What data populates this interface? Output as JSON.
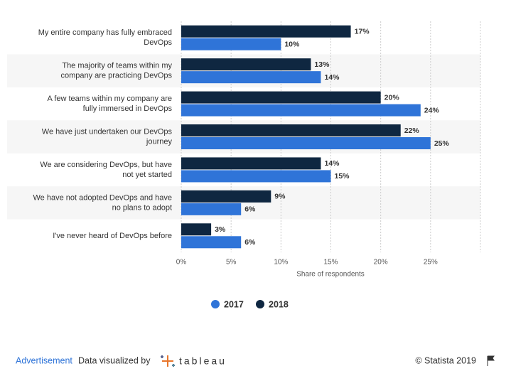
{
  "chart_data": {
    "type": "barh",
    "categories": [
      "My entire company has fully embraced DevOps",
      "The majority of teams within my company are practicing DevOps",
      "A few teams within my company are fully immersed in DevOps",
      "We have just undertaken our DevOps journey",
      "We are considering DevOps, but have not yet started",
      "We have not adopted DevOps and have no plans to adopt",
      "I've never heard of DevOps before"
    ],
    "series": [
      {
        "name": "2017",
        "color": "#2f74d8",
        "values": [
          10,
          14,
          24,
          25,
          15,
          6,
          6
        ],
        "value_labels": [
          "10%",
          "14%",
          "24%",
          "25%",
          "15%",
          "6%",
          "6%"
        ]
      },
      {
        "name": "2018",
        "color": "#0f2741",
        "values": [
          17,
          13,
          20,
          22,
          14,
          9,
          3
        ],
        "value_labels": [
          "17%",
          "13%",
          "20%",
          "22%",
          "14%",
          "9%",
          "3%"
        ]
      }
    ],
    "xlabel": "Share of respondents",
    "xlim": [
      0,
      30
    ],
    "xticks": [
      {
        "value": 0,
        "label": "0%"
      },
      {
        "value": 5,
        "label": "5%"
      },
      {
        "value": 10,
        "label": "10%"
      },
      {
        "value": 15,
        "label": "15%"
      },
      {
        "value": 20,
        "label": "20%"
      },
      {
        "value": 25,
        "label": "25%"
      }
    ],
    "grid": true
  },
  "footer": {
    "advertisement": "Advertisement",
    "visualized": "Data visualized by",
    "logo": "tableau",
    "copyright": "© Statista 2019"
  }
}
